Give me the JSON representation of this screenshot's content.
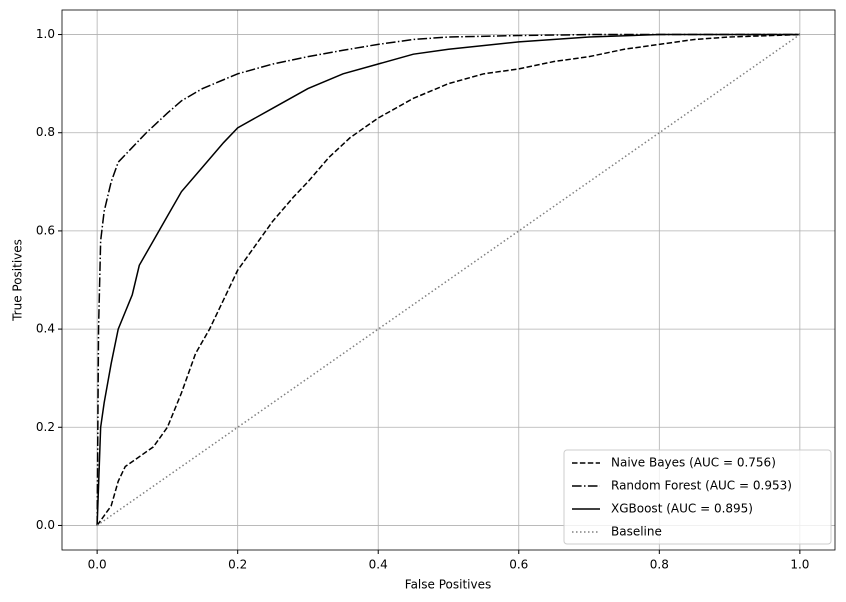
{
  "chart_data": {
    "type": "line",
    "xlabel": "False Positives",
    "ylabel": "True Positives",
    "xlim": [
      -0.05,
      1.05
    ],
    "ylim": [
      -0.05,
      1.05
    ],
    "xticks": [
      {
        "value": 0,
        "label": "0.0"
      },
      0.2,
      0.4,
      0.6,
      0.8,
      {
        "value": 1,
        "label": "1.0"
      }
    ],
    "yticks": [
      {
        "value": 0,
        "label": "0.0"
      },
      0.2,
      0.4,
      0.6,
      0.8,
      {
        "value": 1,
        "label": "1.0"
      }
    ],
    "grid": true,
    "legend": "lower right",
    "series": [
      {
        "name": "Naive Bayes (AUC = 0.756)",
        "color": "#000000",
        "linestyle": "dashed",
        "x": [
          0,
          0.01,
          0.02,
          0.03,
          0.04,
          0.06,
          0.08,
          0.1,
          0.12,
          0.14,
          0.16,
          0.18,
          0.2,
          0.22,
          0.25,
          0.28,
          0.3,
          0.33,
          0.36,
          0.4,
          0.45,
          0.5,
          0.55,
          0.6,
          0.65,
          0.7,
          0.75,
          0.8,
          0.85,
          0.9,
          1
        ],
        "values": [
          0,
          0.02,
          0.04,
          0.09,
          0.12,
          0.14,
          0.16,
          0.2,
          0.27,
          0.35,
          0.4,
          0.46,
          0.52,
          0.56,
          0.62,
          0.67,
          0.7,
          0.75,
          0.79,
          0.83,
          0.87,
          0.9,
          0.92,
          0.93,
          0.945,
          0.955,
          0.97,
          0.98,
          0.99,
          0.995,
          1
        ]
      },
      {
        "name": "Random Forest (AUC = 0.953)",
        "color": "#000000",
        "linestyle": "dashdot",
        "x": [
          0,
          0.002,
          0.005,
          0.01,
          0.02,
          0.03,
          0.05,
          0.07,
          0.1,
          0.12,
          0.15,
          0.2,
          0.25,
          0.3,
          0.35,
          0.4,
          0.45,
          0.5,
          0.6,
          0.7,
          1
        ],
        "values": [
          0,
          0.4,
          0.58,
          0.64,
          0.7,
          0.74,
          0.77,
          0.8,
          0.84,
          0.865,
          0.89,
          0.92,
          0.94,
          0.955,
          0.968,
          0.98,
          0.99,
          0.995,
          0.998,
          1,
          1
        ]
      },
      {
        "name": "XGBoost (AUC = 0.895)",
        "color": "#000000",
        "linestyle": "solid",
        "x": [
          0,
          0.005,
          0.01,
          0.02,
          0.03,
          0.05,
          0.06,
          0.08,
          0.1,
          0.12,
          0.15,
          0.18,
          0.2,
          0.25,
          0.3,
          0.35,
          0.4,
          0.45,
          0.5,
          0.6,
          0.7,
          0.8,
          1
        ],
        "values": [
          0,
          0.2,
          0.25,
          0.33,
          0.4,
          0.47,
          0.53,
          0.58,
          0.63,
          0.68,
          0.73,
          0.78,
          0.81,
          0.85,
          0.89,
          0.92,
          0.94,
          0.96,
          0.97,
          0.985,
          0.995,
          1,
          1
        ]
      },
      {
        "name": "Baseline",
        "color": "#808080",
        "linestyle": "dotted",
        "x": [
          0,
          1
        ],
        "values": [
          0,
          1
        ]
      }
    ]
  }
}
